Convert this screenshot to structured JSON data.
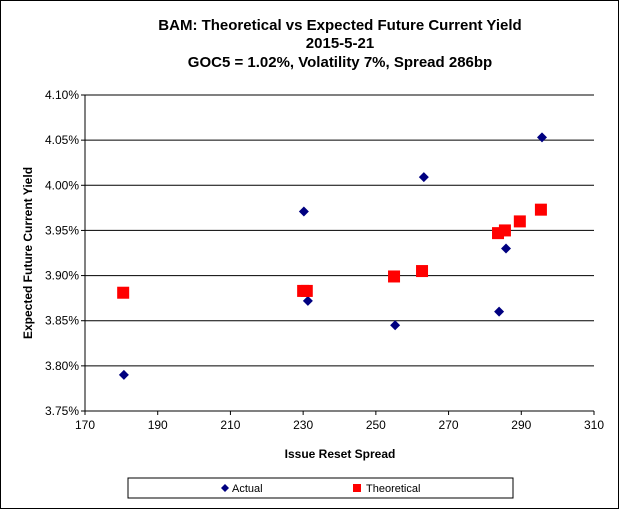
{
  "chart_data": {
    "type": "scatter",
    "title": [
      "BAM: Theoretical vs Expected Future Current Yield",
      "2015-5-21",
      "GOC5 = 1.02%, Volatility 7%, Spread 286bp"
    ],
    "xlabel": "Issue Reset Spread",
    "ylabel": "Expected Future Current Yield",
    "xlim": [
      170,
      310
    ],
    "ylim": [
      3.75,
      4.1
    ],
    "xticks": [
      170,
      190,
      210,
      230,
      250,
      270,
      290,
      310
    ],
    "xtick_labels": [
      "170",
      "190",
      "210",
      "230",
      "250",
      "270",
      "290",
      "310"
    ],
    "yticks": [
      3.75,
      3.8,
      3.85,
      3.9,
      3.95,
      4.0,
      4.05,
      4.1
    ],
    "ytick_labels": [
      "3.75%",
      "3.80%",
      "3.85%",
      "3.90%",
      "3.95%",
      "4.00%",
      "4.05%",
      "4.10%"
    ],
    "grid": "horizontal",
    "legend_position": "bottom",
    "series": [
      {
        "name": "Actual",
        "marker": "diamond",
        "color": "#000080",
        "x": [
          180.7,
          230.2,
          231.3,
          255.3,
          263.2,
          283.9,
          285.8,
          295.7
        ],
        "y": [
          3.79,
          3.971,
          3.872,
          3.845,
          4.009,
          3.86,
          3.93,
          4.053
        ]
      },
      {
        "name": "Theoretical",
        "marker": "square",
        "color": "#FF0000",
        "x": [
          180.5,
          230.0,
          231.0,
          255.0,
          262.7,
          283.6,
          285.5,
          289.6,
          295.4
        ],
        "y": [
          3.881,
          3.883,
          3.883,
          3.899,
          3.905,
          3.947,
          3.95,
          3.96,
          3.973
        ]
      }
    ]
  }
}
